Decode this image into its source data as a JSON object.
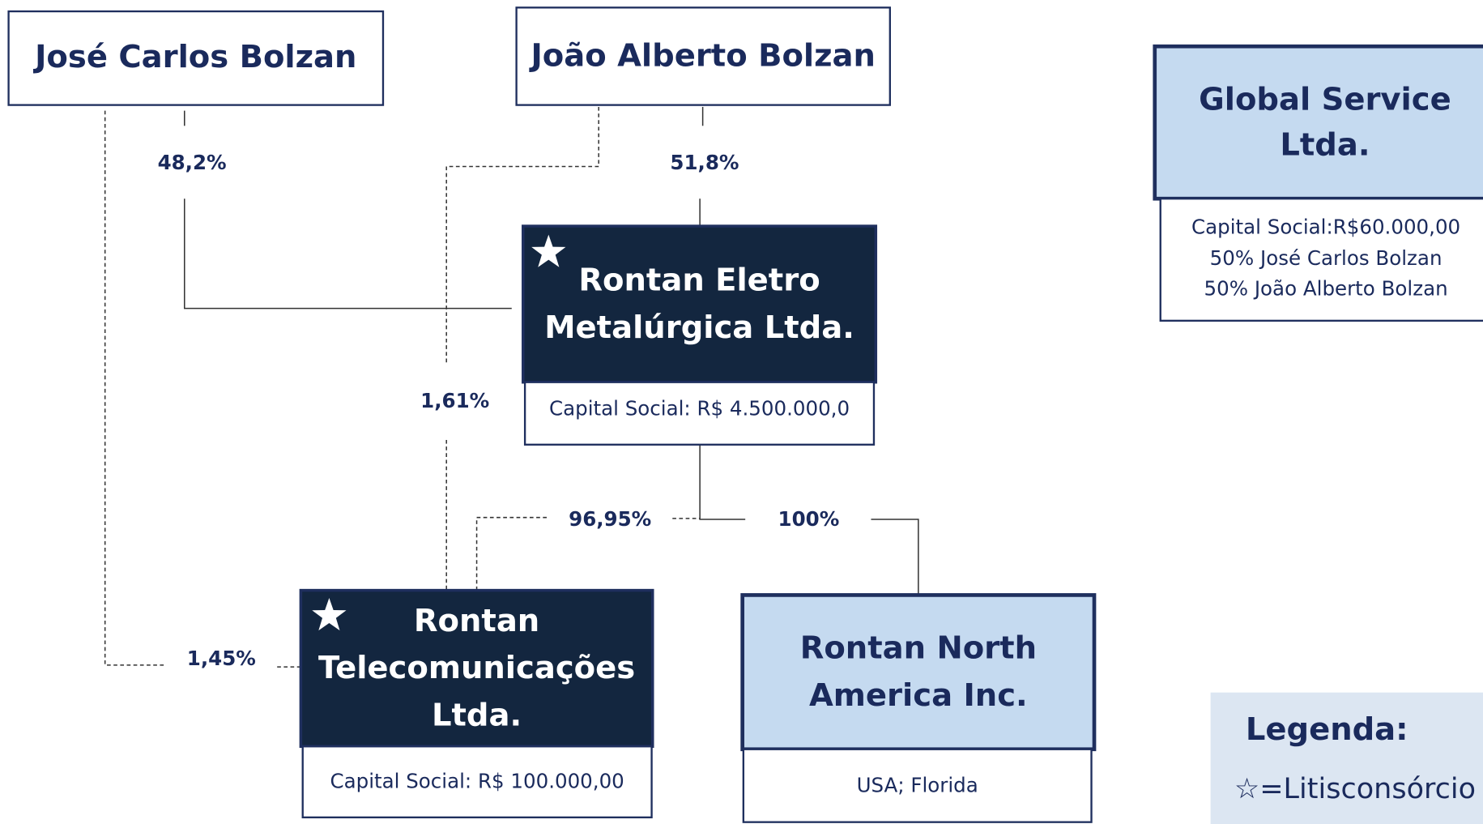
{
  "nodes": [
    {
      "lines": [
        "José Carlos Bolzan"
      ]
    },
    {
      "lines": [
        "João Alberto Bolzan"
      ]
    },
    {
      "lines": [
        "Global Service",
        "Ltda."
      ],
      "details": [
        "Capital Social:R$60.000,00",
        "50% José Carlos Bolzan",
        "50% João Alberto Bolzan"
      ]
    },
    {
      "lines": [
        "Rontan Eletro",
        "Metalúrgica Ltda."
      ],
      "details": [
        "Capital Social: R$ 4.500.000,0"
      ]
    },
    {
      "lines": [
        "Rontan",
        "Telecomunicações",
        "Ltda."
      ],
      "details": [
        "Capital Social: R$ 100.000,00"
      ]
    },
    {
      "lines": [
        "Rontan North",
        "America Inc."
      ],
      "details": [
        "USA; Florida"
      ]
    }
  ],
  "edges": [
    {
      "label": "48,2%"
    },
    {
      "label": "1,45%"
    },
    {
      "label": "51,8%"
    },
    {
      "label": "1,61%"
    },
    {
      "label": "100%"
    },
    {
      "label": "96,95%"
    }
  ],
  "legend": {
    "title": "Legenda:",
    "entry": "☆=Litisconsórcio"
  }
}
